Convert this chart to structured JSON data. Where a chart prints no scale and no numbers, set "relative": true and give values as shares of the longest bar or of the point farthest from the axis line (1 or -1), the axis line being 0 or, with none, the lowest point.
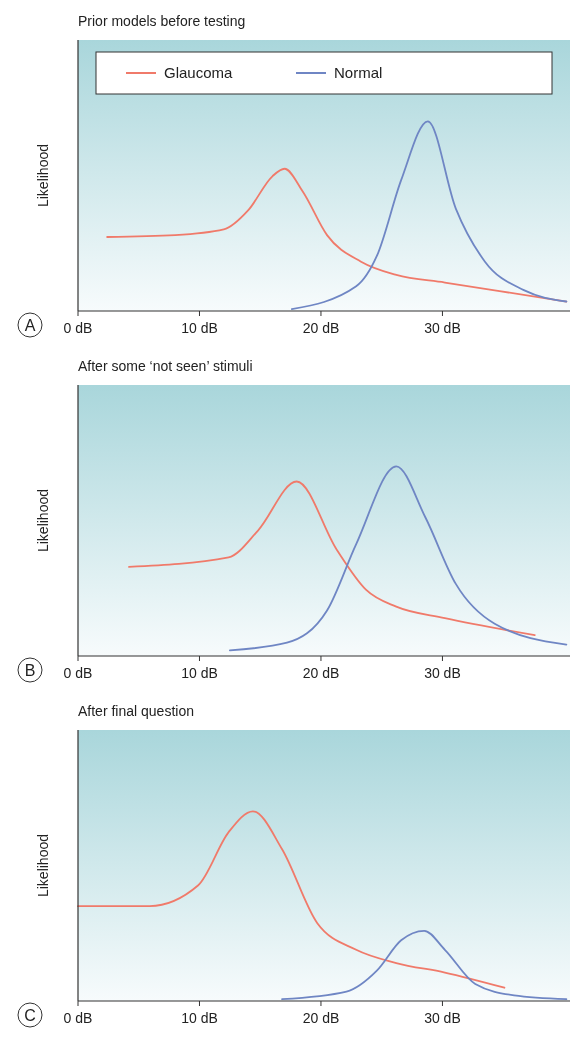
{
  "chart_data": [
    {
      "type": "line",
      "title": "Prior models before testing",
      "ylabel": "Likelihood",
      "relative": true,
      "legend": "top",
      "annotations": [
        "A"
      ],
      "xlim": [
        0,
        40.5
      ],
      "xticks": [
        {
          "value": 0,
          "label": "0 dB"
        },
        {
          "value": 10,
          "label": "10 dB"
        },
        {
          "value": 20,
          "label": "20 dB"
        },
        {
          "value": 30,
          "label": "30 dB"
        }
      ],
      "series": [
        {
          "name": "Glaucoma",
          "color": "#f07a6a",
          "x": [
            2.4,
            8,
            12,
            14,
            16,
            17,
            18.5,
            20.5,
            23.3,
            26.2,
            30.2,
            40.2
          ],
          "values": [
            0.39,
            0.4,
            0.43,
            0.53,
            0.71,
            0.75,
            0.63,
            0.4,
            0.26,
            0.19,
            0.15,
            0.05
          ]
        },
        {
          "name": "Normal",
          "color": "#6f86c4",
          "x": [
            17.6,
            22.9,
            24.6,
            26.6,
            28.8,
            31.1,
            33.5,
            36.7,
            40.2
          ],
          "values": [
            0.01,
            0.13,
            0.29,
            0.69,
            1,
            0.54,
            0.26,
            0.11,
            0.05
          ]
        }
      ]
    },
    {
      "type": "line",
      "title": "After some ‘not seen’ stimuli",
      "ylabel": "Likelihood",
      "relative": true,
      "annotations": [
        "B"
      ],
      "xlim": [
        0,
        40.5
      ],
      "xticks": [
        {
          "value": 0,
          "label": "0 dB"
        },
        {
          "value": 10,
          "label": "10 dB"
        },
        {
          "value": 20,
          "label": "20 dB"
        },
        {
          "value": 30,
          "label": "30 dB"
        }
      ],
      "series": [
        {
          "color": "#f07a6a",
          "x": [
            4.2,
            12.4,
            14.8,
            18,
            21.3,
            23.7,
            26.2,
            30.2,
            37.6
          ],
          "values": [
            0.47,
            0.52,
            0.66,
            0.92,
            0.56,
            0.35,
            0.26,
            0.2,
            0.11
          ]
        },
        {
          "color": "#6f86c4",
          "x": [
            12.5,
            17.2,
            20.5,
            22.9,
            26.2,
            28.6,
            31.1,
            34.3,
            40.2
          ],
          "values": [
            0.03,
            0.07,
            0.24,
            0.59,
            1,
            0.73,
            0.38,
            0.17,
            0.06
          ]
        }
      ]
    },
    {
      "type": "line",
      "title": "After final question",
      "ylabel": "Likelihood",
      "relative": true,
      "annotations": [
        "C"
      ],
      "xlim": [
        0,
        40.5
      ],
      "xticks": [
        {
          "value": 0,
          "label": "0 dB"
        },
        {
          "value": 10,
          "label": "10 dB"
        },
        {
          "value": 20,
          "label": "20 dB"
        },
        {
          "value": 30,
          "label": "30 dB"
        }
      ],
      "series": [
        {
          "color": "#f07a6a",
          "x": [
            0,
            5.9,
            9.9,
            12.4,
            14.4,
            16.8,
            19.7,
            22.9,
            26.2,
            30.2,
            35.1
          ],
          "values": [
            0.5,
            0.5,
            0.61,
            0.89,
            1,
            0.8,
            0.41,
            0.27,
            0.2,
            0.15,
            0.07
          ]
        },
        {
          "color": "#6f86c4",
          "x": [
            16.8,
            22.1,
            24.6,
            26.6,
            28.5,
            30.2,
            32.7,
            35.9,
            40.2
          ],
          "values": [
            0.01,
            0.05,
            0.16,
            0.32,
            0.37,
            0.27,
            0.09,
            0.03,
            0.01
          ]
        }
      ]
    }
  ]
}
